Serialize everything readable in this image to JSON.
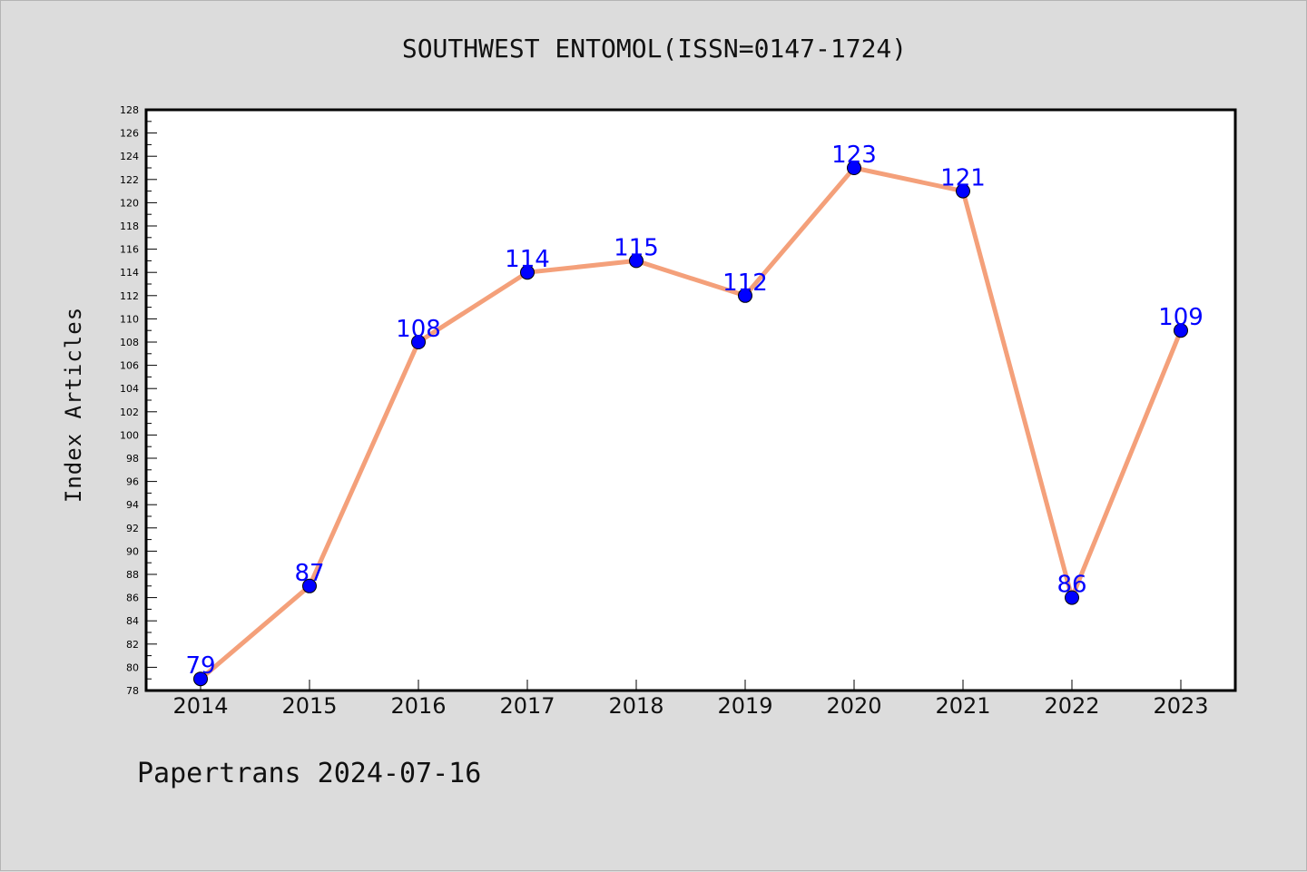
{
  "chart_data": {
    "type": "line",
    "title": "SOUTHWEST ENTOMOL(ISSN=0147-1724)",
    "ylabel": "Index Articles",
    "xlabel": "",
    "categories": [
      "2014",
      "2015",
      "2016",
      "2017",
      "2018",
      "2019",
      "2020",
      "2021",
      "2022",
      "2023"
    ],
    "series": [
      {
        "values": [
          79,
          87,
          108,
          114,
          115,
          112,
          123,
          121,
          86,
          109
        ]
      }
    ],
    "ylim": [
      78,
      128
    ],
    "y_ticks": [
      78,
      80,
      82,
      84,
      86,
      88,
      90,
      92,
      94,
      96,
      98,
      100,
      102,
      104,
      106,
      108,
      110,
      112,
      114,
      116,
      118,
      120,
      122,
      124,
      126,
      128
    ],
    "grid": false,
    "legend": "none",
    "line_color": "#f4a07a",
    "marker_color": "#0000ff",
    "label_color": "#0000ff"
  },
  "footer": "Papertrans 2024-07-16"
}
